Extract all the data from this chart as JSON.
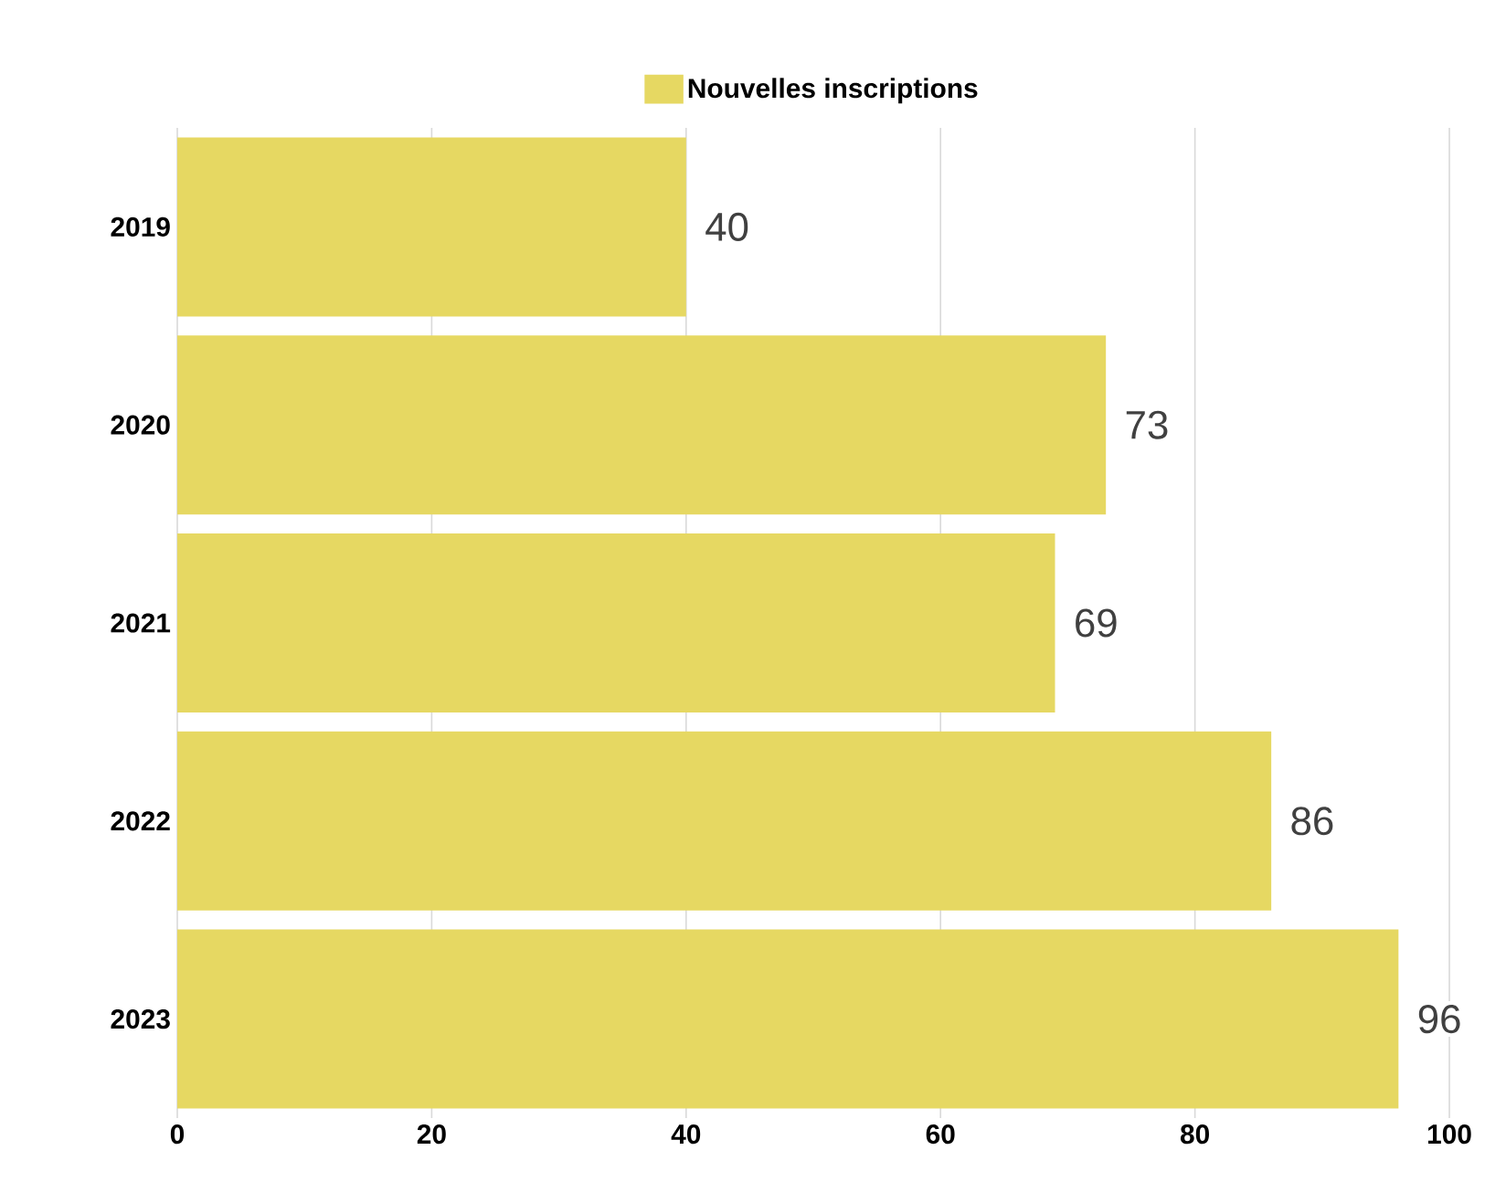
{
  "chart_data": {
    "type": "bar",
    "orientation": "horizontal",
    "categories": [
      "2019",
      "2020",
      "2021",
      "2022",
      "2023"
    ],
    "series": [
      {
        "name": "Nouvelles inscriptions",
        "color": "#e6d862",
        "values": [
          40,
          73,
          69,
          86,
          96
        ]
      }
    ],
    "xlim": [
      0,
      100
    ],
    "xticks": [
      0,
      20,
      40,
      60,
      80,
      100
    ],
    "grid": "x",
    "legend": "top",
    "data_labels": true
  }
}
